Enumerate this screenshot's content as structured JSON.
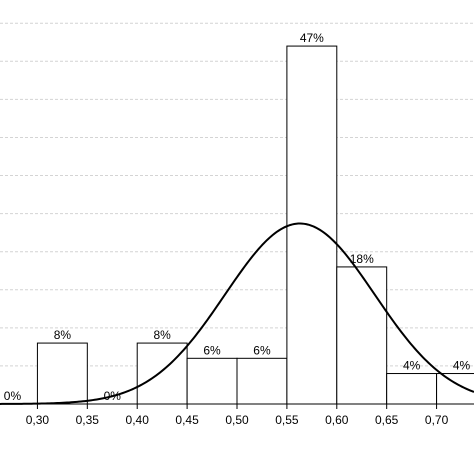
{
  "chart_data": {
    "type": "bar",
    "bin_width": 0.05,
    "bins": [
      {
        "start": 0.25,
        "percent": 0,
        "label": "0%"
      },
      {
        "start": 0.3,
        "percent": 8,
        "label": "8%"
      },
      {
        "start": 0.35,
        "percent": 0,
        "label": "0%"
      },
      {
        "start": 0.4,
        "percent": 8,
        "label": "8%"
      },
      {
        "start": 0.45,
        "percent": 6,
        "label": "6%"
      },
      {
        "start": 0.5,
        "percent": 6,
        "label": "6%"
      },
      {
        "start": 0.55,
        "percent": 47,
        "label": "47%"
      },
      {
        "start": 0.6,
        "percent": 18,
        "label": "18%"
      },
      {
        "start": 0.65,
        "percent": 4,
        "label": "4%"
      },
      {
        "start": 0.7,
        "percent": 4,
        "label": "4%"
      }
    ],
    "x_ticks": [
      "0,30",
      "0,35",
      "0,40",
      "0,45",
      "0,50",
      "0,55",
      "0,60",
      "0,65",
      "0,70"
    ],
    "x_tick_values": [
      0.3,
      0.35,
      0.4,
      0.45,
      0.5,
      0.55,
      0.6,
      0.65,
      0.7
    ],
    "xlim": [
      0.2625,
      0.7375
    ],
    "ylim": [
      0,
      52
    ],
    "grid": true,
    "normal_curve": {
      "mean": 0.563,
      "sd": 0.075,
      "peak_percent": 23.7
    }
  }
}
